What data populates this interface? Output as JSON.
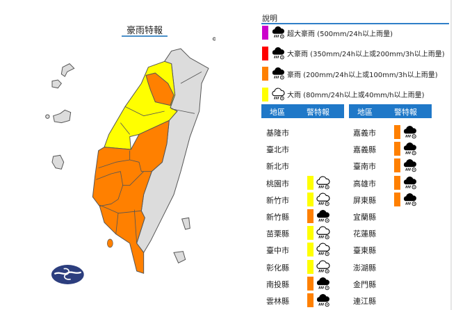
{
  "title": "豪雨特報",
  "colors": {
    "super_torrential": "#cc00cc",
    "torrential_extreme": "#ff0000",
    "torrential": "#ff8000",
    "heavy": "#ffff00",
    "none": "#dcdcdc",
    "header": "#1f78c8",
    "logo": "#2c3e7e"
  },
  "legend": {
    "heading": "說明",
    "items": [
      {
        "level": "super_torrential",
        "icon": "heavy-rain-cloud-icon",
        "label": "超大豪雨 (500mm/24h以上雨量)"
      },
      {
        "level": "torrential_extreme",
        "icon": "heavy-rain-cloud-icon",
        "label": "大豪雨 (350mm/24h以上或200mm/3h以上雨量)"
      },
      {
        "level": "torrential",
        "icon": "heavy-rain-cloud-icon",
        "label": "豪雨 (200mm/24h以上或100mm/3h以上雨量)"
      },
      {
        "level": "heavy",
        "icon": "rain-cloud-outline-icon",
        "label": "大雨 (80mm/24h以上或40mm/h以上雨量)"
      }
    ]
  },
  "table_headers": {
    "region": "地區",
    "warning": "警特報"
  },
  "regions_left": [
    {
      "name": "基隆市",
      "level": "none"
    },
    {
      "name": "臺北市",
      "level": "none"
    },
    {
      "name": "新北市",
      "level": "none"
    },
    {
      "name": "桃園市",
      "level": "heavy"
    },
    {
      "name": "新竹市",
      "level": "heavy"
    },
    {
      "name": "新竹縣",
      "level": "torrential"
    },
    {
      "name": "苗栗縣",
      "level": "heavy"
    },
    {
      "name": "臺中市",
      "level": "heavy"
    },
    {
      "name": "彰化縣",
      "level": "heavy"
    },
    {
      "name": "南投縣",
      "level": "torrential"
    },
    {
      "name": "雲林縣",
      "level": "torrential"
    }
  ],
  "regions_right": [
    {
      "name": "嘉義市",
      "level": "torrential"
    },
    {
      "name": "嘉義縣",
      "level": "torrential"
    },
    {
      "name": "臺南市",
      "level": "torrential"
    },
    {
      "name": "高雄市",
      "level": "torrential"
    },
    {
      "name": "屏東縣",
      "level": "torrential"
    },
    {
      "name": "宜蘭縣",
      "level": "none"
    },
    {
      "name": "花蓮縣",
      "level": "none"
    },
    {
      "name": "臺東縣",
      "level": "none"
    },
    {
      "name": "澎湖縣",
      "level": "none"
    },
    {
      "name": "金門縣",
      "level": "none"
    },
    {
      "name": "連江縣",
      "level": "none"
    }
  ]
}
